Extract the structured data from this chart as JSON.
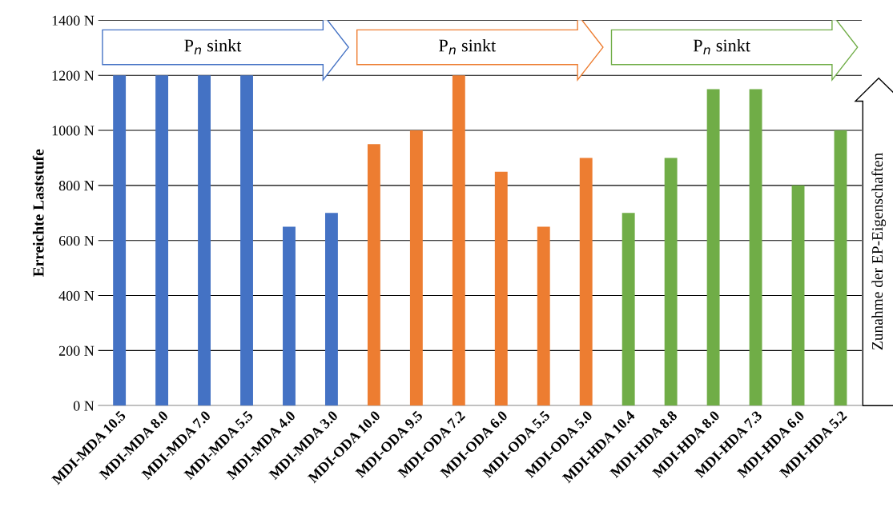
{
  "chart_data": {
    "type": "bar",
    "ylabel": "Erreichte Laststufe",
    "categories": [
      "MDI-MDA 10.5",
      "MDI-MDA 8.0",
      "MDI-MDA 7.0",
      "MDI-MDA 5.5",
      "MDI-MDA 4.0",
      "MDI-MDA 3.0",
      "MDI-ODA 10.0",
      "MDI-ODA 9.5",
      "MDI-ODA 7.2",
      "MDI-ODA 6.0",
      "MDI-ODA 5.5",
      "MDI-ODA 5.0",
      "MDI-HDA 10.4",
      "MDI-HDA 8.8",
      "MDI-HDA 8.0",
      "MDI-HDA 7.3",
      "MDI-HDA 6.0",
      "MDI-HDA 5.2"
    ],
    "values": [
      1200,
      1200,
      1200,
      1200,
      650,
      700,
      950,
      1000,
      1200,
      850,
      650,
      900,
      700,
      900,
      1150,
      1150,
      800,
      1000
    ],
    "colors": [
      "#4472c4",
      "#4472c4",
      "#4472c4",
      "#4472c4",
      "#4472c4",
      "#4472c4",
      "#ed7d31",
      "#ed7d31",
      "#ed7d31",
      "#ed7d31",
      "#ed7d31",
      "#ed7d31",
      "#70ad47",
      "#70ad47",
      "#70ad47",
      "#70ad47",
      "#70ad47",
      "#70ad47"
    ],
    "ylim": [
      0,
      1400
    ],
    "yticks": [
      {
        "value": 0,
        "label": "0 N"
      },
      {
        "value": 200,
        "label": "200 N"
      },
      {
        "value": 400,
        "label": "400 N"
      },
      {
        "value": 600,
        "label": "600 N"
      },
      {
        "value": 800,
        "label": "800 N"
      },
      {
        "value": 1000,
        "label": "1000 N"
      },
      {
        "value": 1200,
        "label": "1200 N"
      },
      {
        "value": 1400,
        "label": "1400 N"
      }
    ],
    "grid": "y",
    "annotations": [
      "P$_{n}$ sinkt",
      "P$_{n}$ sinkt",
      "P$_{n}$ sinkt",
      "Zunahme der EP-Eigenschaften"
    ]
  }
}
